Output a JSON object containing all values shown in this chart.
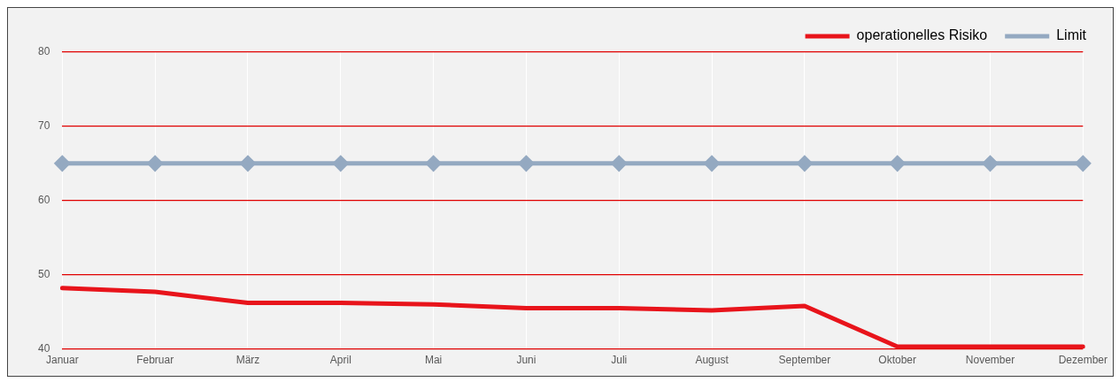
{
  "chart_data": {
    "type": "line",
    "categories": [
      "Januar",
      "Februar",
      "März",
      "April",
      "Mai",
      "Juni",
      "Juli",
      "August",
      "September",
      "Oktober",
      "November",
      "Dezember"
    ],
    "series": [
      {
        "name": "operationelles Risiko",
        "color": "#e8141b",
        "marker": "none",
        "values": [
          48.2,
          47.7,
          46.2,
          46.2,
          46.0,
          45.5,
          45.5,
          45.2,
          45.8,
          40.3,
          40.3,
          40.3
        ]
      },
      {
        "name": "Limit",
        "color": "#94a9c1",
        "marker": "diamond",
        "values": [
          65,
          65,
          65,
          65,
          65,
          65,
          65,
          65,
          65,
          65,
          65,
          65
        ]
      }
    ],
    "ylim": [
      40,
      80
    ],
    "yticks": [
      40,
      50,
      60,
      70,
      80
    ],
    "grid": true,
    "legend": "top right"
  }
}
